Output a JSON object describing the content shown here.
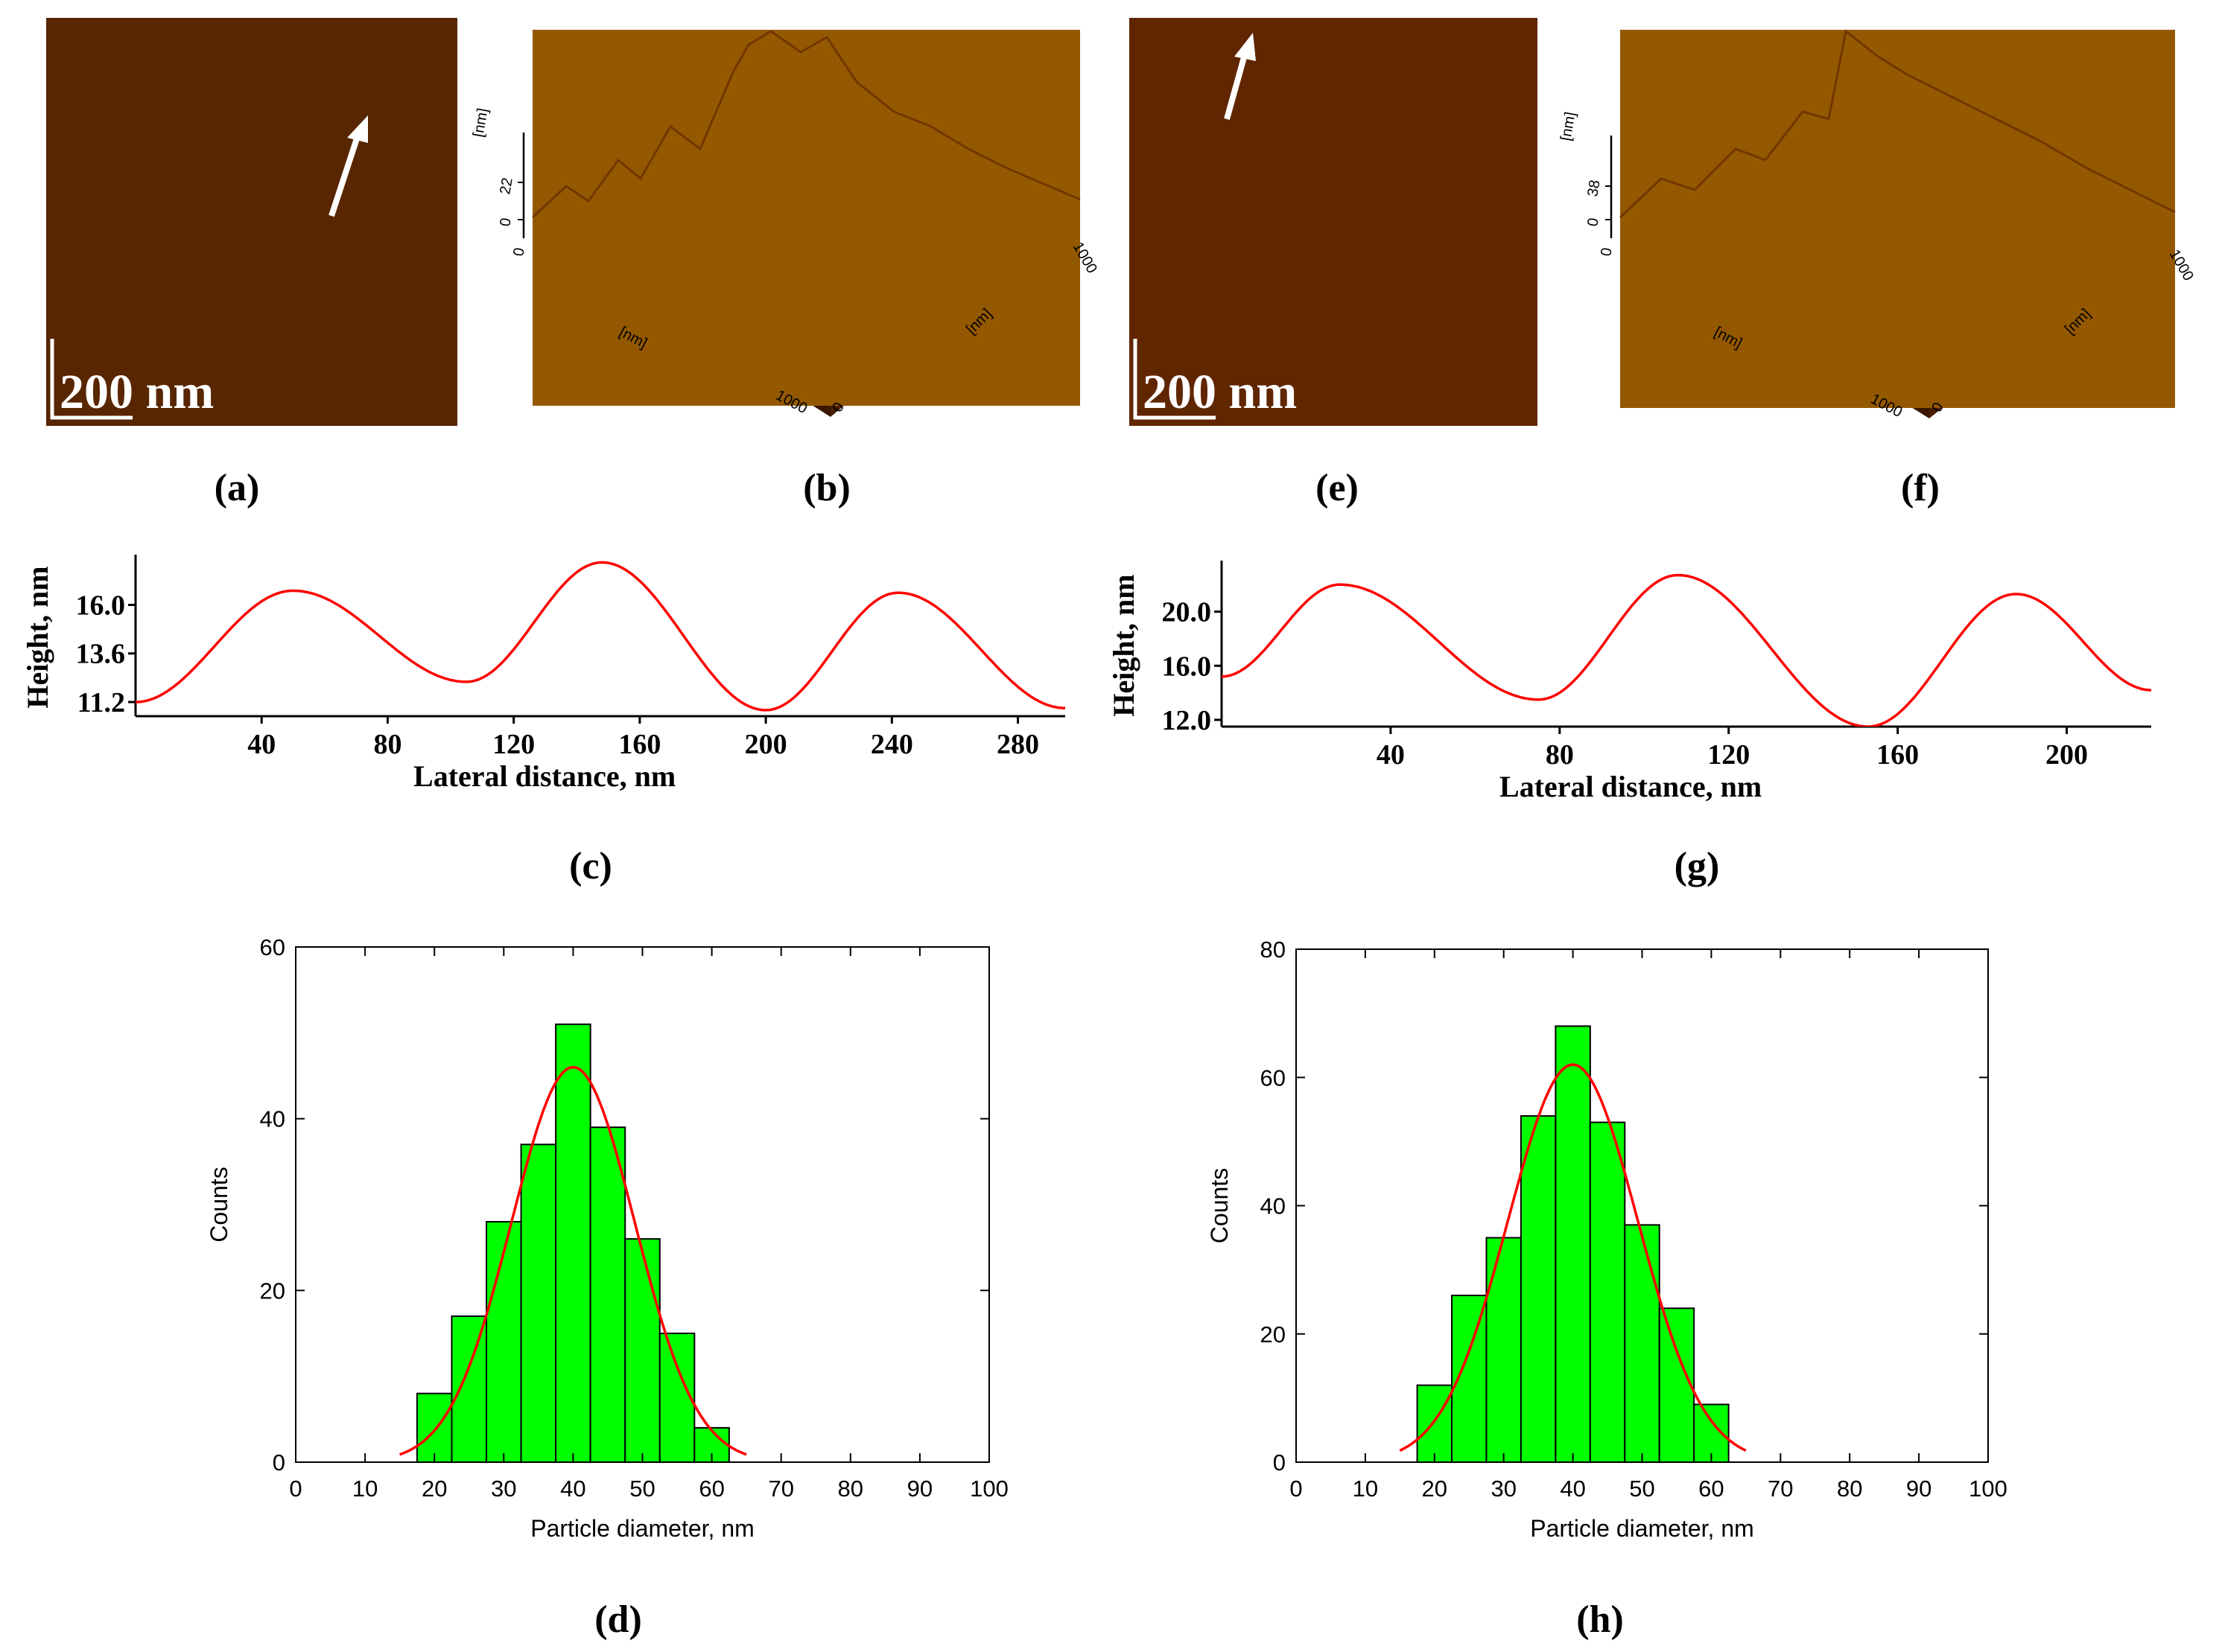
{
  "panel_labels": {
    "a": "(a)",
    "b": "(b)",
    "c": "(c)",
    "d": "(d)",
    "e": "(e)",
    "f": "(f)",
    "g": "(g)",
    "h": "(h)"
  },
  "afm_images": [
    {
      "panel": "a",
      "scale_bar": "200 nm",
      "arrow": "white-arrow"
    },
    {
      "panel": "e",
      "scale_bar": "200 nm",
      "arrow": "white-arrow"
    }
  ],
  "surface_3d": [
    {
      "panel": "b",
      "z_unit": "[nm]",
      "z_max": "22",
      "z_zero": "0",
      "x_unit": "[nm]",
      "y_unit": "[nm]",
      "x_max": "1000",
      "y_max": "1000",
      "origin": "0"
    },
    {
      "panel": "f",
      "z_unit": "[nm]",
      "z_max": "38",
      "z_zero": "0",
      "x_unit": "[nm]",
      "y_unit": "[nm]",
      "x_max": "1000",
      "y_max": "1000",
      "origin": "0"
    }
  ],
  "colors": {
    "afm_dark": "#2a0800",
    "afm_mid": "#b4540c",
    "afm_light": "#ffe6a6",
    "profile_line": "#ff0000",
    "bar_fill": "#00ff00",
    "fit_line": "#ff0000",
    "axis": "#000000"
  },
  "chart_data": [
    {
      "panel": "c",
      "type": "line",
      "xlabel": "Lateral distance, nm",
      "ylabel": "Height, nm",
      "xlim": [
        0,
        295
      ],
      "ylim": [
        10.5,
        18.3
      ],
      "xticks": [
        40,
        80,
        120,
        160,
        200,
        240,
        280
      ],
      "xtick_labels": [
        "40",
        "80",
        "120",
        "160",
        "200",
        "240",
        "280"
      ],
      "yticks": [
        11.2,
        13.6,
        16.0
      ],
      "ytick_labels": [
        "11.2",
        "13.6",
        "16.0"
      ],
      "x": [
        0,
        50,
        105,
        148,
        200,
        242,
        295
      ],
      "y": [
        11.2,
        16.7,
        12.2,
        18.1,
        10.8,
        16.6,
        10.9
      ]
    },
    {
      "panel": "g",
      "type": "line",
      "xlabel": "Lateral distance, nm",
      "ylabel": "Height, nm",
      "xlim": [
        0,
        220
      ],
      "ylim": [
        11.5,
        23.5
      ],
      "xticks": [
        40,
        80,
        120,
        160,
        200
      ],
      "xtick_labels": [
        "40",
        "80",
        "120",
        "160",
        "200"
      ],
      "yticks": [
        12.0,
        16.0,
        20.0
      ],
      "ytick_labels": [
        "12.0",
        "16.0",
        "20.0"
      ],
      "x": [
        0,
        28,
        75,
        108,
        153,
        188,
        220
      ],
      "y": [
        15.2,
        22.0,
        13.5,
        22.7,
        11.5,
        21.3,
        14.2
      ]
    },
    {
      "panel": "d",
      "type": "bar",
      "xlabel": "Particle diameter, nm",
      "ylabel": "Counts",
      "xlim": [
        0,
        100
      ],
      "ylim": [
        0,
        60
      ],
      "xticks": [
        0,
        10,
        20,
        30,
        40,
        50,
        60,
        70,
        80,
        90,
        100
      ],
      "xtick_labels": [
        "0",
        "10",
        "20",
        "30",
        "40",
        "50",
        "60",
        "70",
        "80",
        "90",
        "100"
      ],
      "yticks": [
        0,
        20,
        40,
        60
      ],
      "ytick_labels": [
        "0",
        "20",
        "40",
        "60"
      ],
      "bin_width": 5,
      "bin_centers": [
        20,
        25,
        30,
        35,
        40,
        45,
        50,
        55,
        60
      ],
      "values": [
        8,
        17,
        28,
        37,
        51,
        39,
        26,
        15,
        4
      ],
      "fit": {
        "type": "gaussian",
        "mean": 40,
        "sigma": 8.9,
        "amplitude": 46,
        "x_range": [
          15,
          65
        ]
      }
    },
    {
      "panel": "h",
      "type": "bar",
      "xlabel": "Particle diameter, nm",
      "ylabel": "Counts",
      "xlim": [
        0,
        100
      ],
      "ylim": [
        0,
        80
      ],
      "xticks": [
        0,
        10,
        20,
        30,
        40,
        50,
        60,
        70,
        80,
        90,
        100
      ],
      "xtick_labels": [
        "0",
        "10",
        "20",
        "30",
        "40",
        "50",
        "60",
        "70",
        "80",
        "90",
        "100"
      ],
      "yticks": [
        0,
        20,
        40,
        60,
        80
      ],
      "ytick_labels": [
        "0",
        "20",
        "40",
        "60",
        "80"
      ],
      "bin_width": 5,
      "bin_centers": [
        20,
        25,
        30,
        35,
        40,
        45,
        50,
        55,
        60
      ],
      "values": [
        12,
        26,
        35,
        54,
        68,
        53,
        37,
        24,
        9
      ],
      "fit": {
        "type": "gaussian",
        "mean": 40,
        "sigma": 9.4,
        "amplitude": 62,
        "x_range": [
          15,
          65
        ]
      }
    }
  ]
}
